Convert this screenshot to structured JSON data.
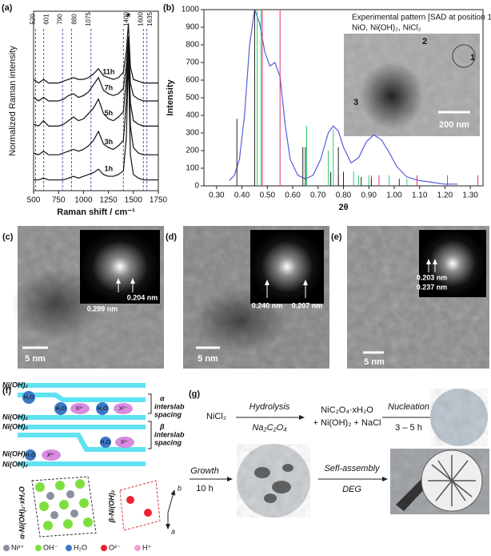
{
  "chart_data": [
    {
      "type": "line",
      "panel_label": "(a)",
      "xlabel": "Raman shift / cm⁻¹",
      "ylabel": "Normalized Raman intensity",
      "xlim": [
        500,
        1750
      ],
      "xticks": [
        500,
        750,
        1000,
        1250,
        1500,
        1750
      ],
      "ylim": [
        0,
        10
      ],
      "reference_lines": [
        520,
        601,
        790,
        880,
        1075,
        1400,
        1600,
        1635
      ],
      "reference_color": "#4a5fc1",
      "annotation": "*",
      "x": [
        500,
        550,
        600,
        650,
        700,
        750,
        800,
        850,
        900,
        950,
        1000,
        1050,
        1100,
        1150,
        1200,
        1250,
        1300,
        1350,
        1400,
        1430,
        1450,
        1470,
        1500,
        1550,
        1600,
        1650,
        1700,
        1750
      ],
      "series": [
        {
          "name": "11h",
          "color": "#111111",
          "values": [
            6.2,
            6.0,
            6.2,
            6.0,
            6.0,
            6.0,
            6.1,
            6.2,
            6.3,
            6.2,
            6.2,
            6.3,
            6.5,
            6.8,
            6.4,
            6.3,
            6.2,
            6.3,
            6.6,
            7.8,
            9.3,
            6.9,
            6.2,
            6.1,
            6.0,
            6.0,
            6.0,
            6.0
          ]
        },
        {
          "name": "7h",
          "color": "#111111",
          "values": [
            5.2,
            5.0,
            5.2,
            5.0,
            5.0,
            5.0,
            5.1,
            5.3,
            5.4,
            5.2,
            5.3,
            5.5,
            5.9,
            6.3,
            5.6,
            5.4,
            5.3,
            5.4,
            5.7,
            7.0,
            8.6,
            6.0,
            5.3,
            5.1,
            5.0,
            5.0,
            5.0,
            5.0
          ]
        },
        {
          "name": "5h",
          "color": "#111111",
          "values": [
            3.7,
            3.6,
            3.9,
            3.6,
            3.6,
            3.6,
            3.7,
            3.9,
            4.1,
            3.9,
            4.0,
            4.3,
            4.6,
            5.1,
            4.3,
            4.0,
            3.9,
            4.1,
            4.4,
            6.3,
            8.2,
            4.9,
            3.9,
            3.7,
            3.6,
            3.6,
            3.6,
            3.6
          ]
        },
        {
          "name": "3h",
          "color": "#111111",
          "values": [
            2.1,
            2.0,
            2.2,
            2.0,
            2.0,
            2.0,
            2.1,
            2.2,
            2.3,
            2.2,
            2.3,
            2.5,
            2.8,
            3.3,
            2.6,
            2.4,
            2.3,
            2.5,
            2.8,
            5.0,
            8.4,
            3.6,
            2.4,
            2.1,
            2.0,
            2.0,
            2.0,
            2.0
          ]
        },
        {
          "name": "1h",
          "color": "#111111",
          "values": [
            0.6,
            0.6,
            0.7,
            0.6,
            0.6,
            0.6,
            0.6,
            0.7,
            0.8,
            0.7,
            0.8,
            0.9,
            1.0,
            1.2,
            0.9,
            0.8,
            0.8,
            0.9,
            1.1,
            3.0,
            7.5,
            2.0,
            0.9,
            0.7,
            0.6,
            0.6,
            0.6,
            0.6
          ]
        }
      ]
    },
    {
      "type": "line",
      "panel_label": "(b)",
      "xlabel": "2θ",
      "ylabel": "Intensity",
      "xlim": [
        0.25,
        1.35
      ],
      "xticks": [
        {
          "value": 0.3,
          "label": "0.30"
        },
        {
          "value": 0.4,
          "label": "0.40"
        },
        {
          "value": 0.5,
          "label": "0.50"
        },
        {
          "value": 0.6,
          "label": "0.60"
        },
        {
          "value": 0.7,
          "label": "0.70"
        },
        {
          "value": 0.8,
          "label": "0.80"
        },
        {
          "value": 0.9,
          "label": "0.90"
        },
        {
          "value": 1.0,
          "label": "1.00"
        },
        {
          "value": 1.1,
          "label": "1.10"
        },
        {
          "value": 1.2,
          "label": "1.20"
        },
        {
          "value": 1.3,
          "label": "1.30"
        }
      ],
      "ylim": [
        0,
        1000
      ],
      "yticks": [
        0,
        100,
        200,
        300,
        400,
        500,
        600,
        700,
        800,
        900,
        1000
      ],
      "series": [
        {
          "name": "Experimental pattern [SAD at position 1]",
          "color": "#5560d8",
          "kind": "curve",
          "x": [
            0.35,
            0.37,
            0.39,
            0.41,
            0.43,
            0.45,
            0.47,
            0.49,
            0.51,
            0.53,
            0.55,
            0.57,
            0.59,
            0.62,
            0.65,
            0.68,
            0.71,
            0.74,
            0.76,
            0.78,
            0.8,
            0.83,
            0.86,
            0.89,
            0.92,
            0.95,
            0.98,
            1.01,
            1.05,
            1.1,
            1.15,
            1.2,
            1.25
          ],
          "values": [
            30,
            60,
            150,
            400,
            800,
            1000,
            920,
            760,
            680,
            700,
            620,
            350,
            150,
            60,
            40,
            60,
            150,
            300,
            340,
            310,
            220,
            130,
            160,
            250,
            290,
            260,
            190,
            110,
            50,
            30,
            20,
            10,
            10
          ]
        },
        {
          "name": "NiO,",
          "color": "#e0306a",
          "kind": "stem",
          "x": [
            0.48,
            0.55,
            0.78,
            0.91,
            0.94,
            1.09,
            1.21,
            1.33
          ],
          "values": [
            1000,
            1000,
            60,
            60,
            60,
            60,
            60,
            60
          ]
        },
        {
          "name": "Ni(OH)₂,",
          "color": "#2ecc71",
          "kind": "stem",
          "x": [
            0.46,
            0.475,
            0.655,
            0.74,
            0.76,
            0.84,
            0.86,
            0.9,
            0.98,
            1.05
          ],
          "values": [
            1000,
            1000,
            340,
            200,
            320,
            80,
            60,
            60,
            60,
            40
          ]
        },
        {
          "name": "NiCl₂",
          "color": "#222222",
          "kind": "stem",
          "x": [
            0.38,
            0.45,
            0.64,
            0.65,
            0.75,
            0.78,
            0.8,
            0.87,
            0.91,
            1.02
          ],
          "values": [
            380,
            1000,
            220,
            220,
            80,
            220,
            80,
            50,
            40,
            40
          ]
        }
      ]
    }
  ],
  "panels": {
    "b_inset": {
      "labels": [
        "1",
        "2",
        "3"
      ],
      "scale": "200 nm"
    },
    "c": {
      "label": "(c)",
      "scale": "5 nm",
      "spacings": [
        "0.204 nm",
        "0.299 nm"
      ]
    },
    "d": {
      "label": "(d)",
      "scale": "5 nm",
      "spacings": [
        "0.240 nm",
        "0.207 nm"
      ]
    },
    "e": {
      "label": "(e)",
      "scale": "5 nm",
      "spacings": [
        "0.203 nm",
        "0.237 nm"
      ]
    },
    "f": {
      "label": "(f)",
      "layers": [
        "Ni(OH)₂",
        "Ni(OH)₂",
        "Ni(OH)₂",
        "Ni(OH)₂",
        "Ni(OH)₂"
      ],
      "molecules": [
        "H₂O",
        "H₂O",
        "X²⁻",
        "H₂O",
        "X²⁻",
        "H₂O",
        "X²⁻",
        "H₂O",
        "X²⁻"
      ],
      "alpha_label": [
        "α",
        "interslab",
        "spacing"
      ],
      "beta_label": [
        "β",
        "interslab",
        "spacing"
      ],
      "structures": [
        "α-Ni(OH)₂·xH₂O",
        "β-Ni(OH)₂"
      ],
      "axes": [
        "b",
        "a"
      ],
      "legend": [
        "Ni²⁺",
        "OH⁻",
        "H₂O",
        "O²⁻",
        "H⁺"
      ]
    },
    "g": {
      "label": "(g)",
      "reactant": "NiCl₂",
      "step1": [
        "Hydrolysis",
        "Na₂C₂O₄"
      ],
      "product": [
        "NiC₂O₄·xH₂O",
        "+ Ni(OH)₂ + NaCl"
      ],
      "step2": [
        "Nucleation",
        "3 – 5 h"
      ],
      "step3": [
        "Growth",
        "10 h"
      ],
      "step4": [
        "Sefl-assembly",
        "DEG"
      ]
    }
  }
}
